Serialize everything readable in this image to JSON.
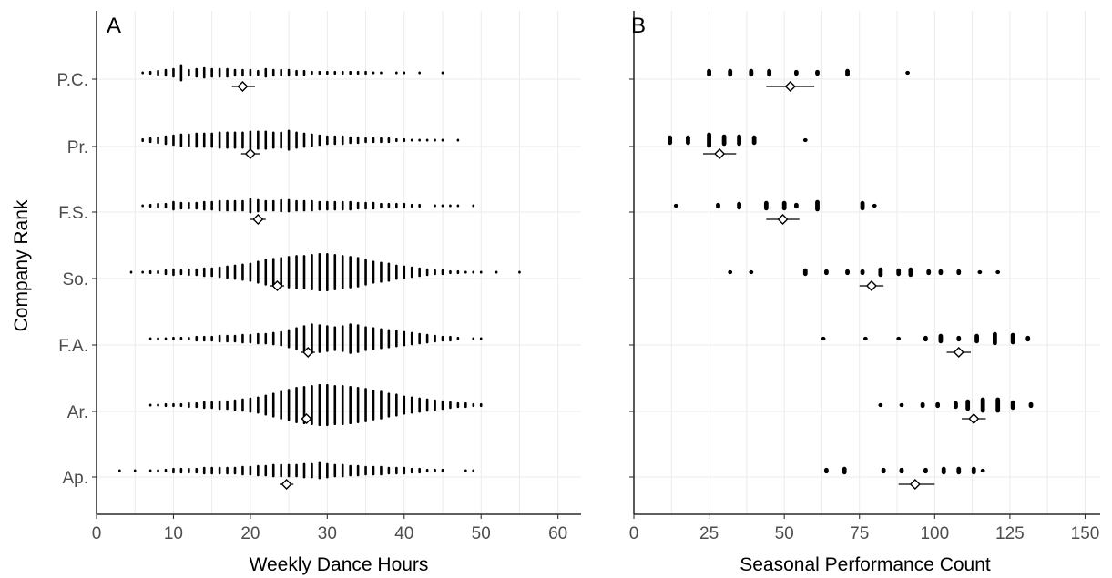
{
  "chart_data": [
    {
      "type": "scatter",
      "panel_label": "A",
      "title": "",
      "xlabel": "Weekly Dance Hours",
      "ylabel": "Company Rank",
      "xlim": [
        0,
        63
      ],
      "xticks": [
        "0",
        "10",
        "20",
        "30",
        "40",
        "50",
        "60"
      ],
      "xtick_values": [
        0,
        10,
        20,
        30,
        40,
        50,
        60
      ],
      "categories": [
        "P.C.",
        "Pr.",
        "F.S.",
        "So.",
        "F.A.",
        "Ar.",
        "Ap."
      ],
      "grid": true,
      "distributions": [
        {
          "rank": "P.C.",
          "xs": [
            6,
            7,
            8,
            9,
            10,
            11,
            12,
            13,
            14,
            15,
            16,
            17,
            18,
            19,
            20,
            21,
            22,
            23,
            24,
            25,
            26,
            27,
            28,
            29,
            30,
            31,
            32,
            33,
            34,
            35,
            36,
            37,
            39,
            40,
            42,
            45
          ],
          "counts": [
            1,
            2,
            3,
            4,
            5,
            9,
            4,
            5,
            6,
            5,
            5,
            5,
            4,
            4,
            4,
            3,
            5,
            4,
            4,
            4,
            3,
            3,
            2,
            2,
            2,
            2,
            2,
            2,
            2,
            2,
            1,
            1,
            1,
            1,
            1,
            1
          ],
          "mean": 19.0,
          "ci": [
            17.6,
            20.6
          ]
        },
        {
          "rank": "Pr.",
          "xs": [
            6,
            7,
            8,
            9,
            10,
            11,
            12,
            13,
            14,
            15,
            16,
            17,
            18,
            19,
            20,
            21,
            22,
            23,
            24,
            25,
            26,
            27,
            28,
            29,
            30,
            31,
            32,
            33,
            34,
            35,
            36,
            37,
            38,
            39,
            40,
            41,
            42,
            43,
            44,
            45,
            47
          ],
          "counts": [
            2,
            3,
            4,
            5,
            6,
            7,
            7,
            8,
            8,
            8,
            9,
            9,
            9,
            9,
            10,
            10,
            10,
            9,
            9,
            11,
            9,
            8,
            7,
            6,
            5,
            5,
            5,
            4,
            4,
            3,
            3,
            3,
            3,
            2,
            2,
            1,
            1,
            1,
            1,
            1,
            1
          ],
          "mean": 20.0,
          "ci": [
            18.8,
            21.2
          ]
        },
        {
          "rank": "F.S.",
          "xs": [
            6,
            7,
            8,
            9,
            10,
            11,
            12,
            13,
            14,
            15,
            16,
            17,
            18,
            19,
            20,
            21,
            22,
            23,
            24,
            25,
            26,
            27,
            28,
            29,
            30,
            31,
            32,
            33,
            34,
            35,
            36,
            37,
            38,
            39,
            40,
            41,
            42,
            44,
            45,
            46,
            47,
            49
          ],
          "counts": [
            1,
            2,
            3,
            3,
            5,
            4,
            4,
            4,
            5,
            5,
            6,
            6,
            6,
            6,
            8,
            7,
            6,
            6,
            7,
            7,
            6,
            6,
            6,
            5,
            5,
            5,
            5,
            5,
            4,
            4,
            4,
            3,
            3,
            3,
            3,
            2,
            2,
            1,
            1,
            1,
            1,
            1
          ],
          "mean": 21.0,
          "ci": [
            20.0,
            22.0
          ]
        },
        {
          "rank": "So.",
          "xs": [
            4.5,
            6,
            7,
            8,
            9,
            10,
            11,
            12,
            13,
            14,
            15,
            16,
            17,
            18,
            19,
            20,
            21,
            22,
            23,
            24,
            25,
            26,
            27,
            28,
            29,
            30,
            31,
            32,
            33,
            34,
            35,
            36,
            37,
            38,
            39,
            40,
            41,
            42,
            43,
            44,
            45,
            46,
            47,
            48,
            49,
            50,
            52,
            55
          ],
          "counts": [
            1,
            1,
            2,
            2,
            3,
            4,
            3,
            4,
            4,
            5,
            5,
            6,
            7,
            8,
            9,
            10,
            12,
            14,
            15,
            16,
            17,
            18,
            18,
            19,
            20,
            20,
            19,
            18,
            17,
            16,
            14,
            12,
            11,
            10,
            8,
            7,
            6,
            5,
            4,
            3,
            3,
            2,
            2,
            1,
            1,
            1,
            1,
            1
          ],
          "mean": 23.5,
          "ci": [
            22.6,
            24.4
          ]
        },
        {
          "rank": "F.A.",
          "xs": [
            7,
            8,
            9,
            10,
            11,
            12,
            13,
            14,
            15,
            16,
            17,
            18,
            19,
            20,
            21,
            22,
            23,
            24,
            25,
            26,
            27,
            28,
            29,
            30,
            31,
            32,
            33,
            34,
            35,
            36,
            37,
            38,
            39,
            40,
            41,
            42,
            43,
            44,
            45,
            46,
            47,
            49,
            50
          ],
          "counts": [
            1,
            1,
            1,
            2,
            2,
            2,
            3,
            3,
            3,
            4,
            4,
            4,
            5,
            5,
            6,
            6,
            7,
            8,
            10,
            12,
            14,
            16,
            15,
            14,
            13,
            14,
            16,
            15,
            13,
            12,
            11,
            10,
            9,
            8,
            7,
            6,
            5,
            4,
            3,
            3,
            2,
            1,
            1
          ],
          "mean": 27.5,
          "ci": [
            26.6,
            28.4
          ]
        },
        {
          "rank": "Ar.",
          "xs": [
            7,
            8,
            9,
            10,
            11,
            12,
            13,
            14,
            15,
            16,
            17,
            18,
            19,
            20,
            21,
            22,
            23,
            24,
            25,
            26,
            27,
            28,
            29,
            30,
            31,
            32,
            33,
            34,
            35,
            36,
            37,
            38,
            39,
            40,
            41,
            42,
            43,
            44,
            45,
            46,
            47,
            48,
            49,
            50
          ],
          "counts": [
            1,
            1,
            2,
            2,
            2,
            3,
            3,
            4,
            4,
            5,
            5,
            6,
            7,
            8,
            9,
            11,
            13,
            15,
            17,
            19,
            20,
            21,
            22,
            22,
            21,
            21,
            20,
            19,
            18,
            16,
            15,
            13,
            12,
            10,
            9,
            8,
            7,
            6,
            5,
            4,
            3,
            3,
            2,
            2
          ],
          "mean": 27.3,
          "ci": [
            26.6,
            28.0
          ]
        },
        {
          "rank": "Ap.",
          "xs": [
            3,
            5,
            7,
            8,
            9,
            10,
            11,
            12,
            13,
            14,
            15,
            16,
            17,
            18,
            19,
            20,
            21,
            22,
            23,
            24,
            25,
            26,
            27,
            28,
            29,
            30,
            31,
            32,
            33,
            34,
            35,
            36,
            37,
            38,
            39,
            40,
            41,
            42,
            43,
            44,
            45,
            48,
            49
          ],
          "counts": [
            1,
            1,
            1,
            1,
            2,
            3,
            3,
            3,
            3,
            4,
            4,
            4,
            4,
            4,
            5,
            5,
            6,
            6,
            7,
            7,
            7,
            7,
            8,
            8,
            9,
            8,
            7,
            7,
            6,
            6,
            5,
            5,
            5,
            4,
            4,
            4,
            3,
            3,
            2,
            2,
            2,
            1,
            1
          ],
          "mean": 24.7,
          "ci": [
            23.8,
            25.6
          ]
        }
      ]
    },
    {
      "type": "scatter",
      "panel_label": "B",
      "title": "",
      "xlabel": "Seasonal Performance Count",
      "ylabel": "",
      "xlim": [
        0,
        155
      ],
      "xticks": [
        "0",
        "25",
        "50",
        "75",
        "100",
        "125",
        "150"
      ],
      "xtick_values": [
        0,
        25,
        50,
        75,
        100,
        125,
        150
      ],
      "categories": [
        "P.C.",
        "Pr.",
        "F.S.",
        "So.",
        "F.A.",
        "Ar.",
        "Ap."
      ],
      "grid": true,
      "distributions": [
        {
          "rank": "P.C.",
          "xs": [
            25,
            32,
            39,
            45,
            54,
            61,
            71,
            91
          ],
          "counts": [
            4,
            4,
            4,
            4,
            3,
            3,
            4,
            2
          ],
          "mean": 52.0,
          "ci": [
            44.0,
            60.0
          ]
        },
        {
          "rank": "Pr.",
          "xs": [
            12,
            18,
            25,
            30,
            35,
            40,
            57
          ],
          "counts": [
            5,
            5,
            8,
            6,
            6,
            5,
            2
          ],
          "mean": 28.5,
          "ci": [
            23.0,
            34.0
          ]
        },
        {
          "rank": "F.S.",
          "xs": [
            14,
            28,
            35,
            44,
            50,
            54,
            61,
            76,
            80
          ],
          "counts": [
            2,
            3,
            4,
            5,
            5,
            3,
            6,
            5,
            2
          ],
          "mean": 49.5,
          "ci": [
            44.0,
            55.0
          ]
        },
        {
          "rank": "So.",
          "xs": [
            32,
            39,
            57,
            64,
            71,
            76,
            82,
            88,
            92,
            98,
            102,
            108,
            115,
            121
          ],
          "counts": [
            2,
            2,
            4,
            3,
            3,
            3,
            5,
            4,
            5,
            3,
            3,
            3,
            2,
            2
          ],
          "mean": 79.0,
          "ci": [
            75.0,
            83.0
          ]
        },
        {
          "rank": "F.A.",
          "xs": [
            63,
            77,
            88,
            97,
            102,
            108,
            114,
            120,
            126,
            131
          ],
          "counts": [
            2,
            2,
            2,
            3,
            5,
            3,
            5,
            7,
            6,
            3
          ],
          "mean": 108.0,
          "ci": [
            104.0,
            112.0
          ]
        },
        {
          "rank": "Ar.",
          "xs": [
            82,
            89,
            96,
            101,
            107,
            111,
            116,
            121,
            126,
            132
          ],
          "counts": [
            2,
            2,
            3,
            3,
            4,
            6,
            8,
            8,
            5,
            3
          ],
          "mean": 113.0,
          "ci": [
            109.0,
            117.0
          ]
        },
        {
          "rank": "Ap.",
          "xs": [
            64,
            70,
            83,
            89,
            97,
            103,
            108,
            113,
            116
          ],
          "counts": [
            3,
            4,
            3,
            3,
            3,
            4,
            4,
            4,
            2
          ],
          "mean": 93.5,
          "ci": [
            88.0,
            100.0
          ]
        }
      ]
    }
  ]
}
